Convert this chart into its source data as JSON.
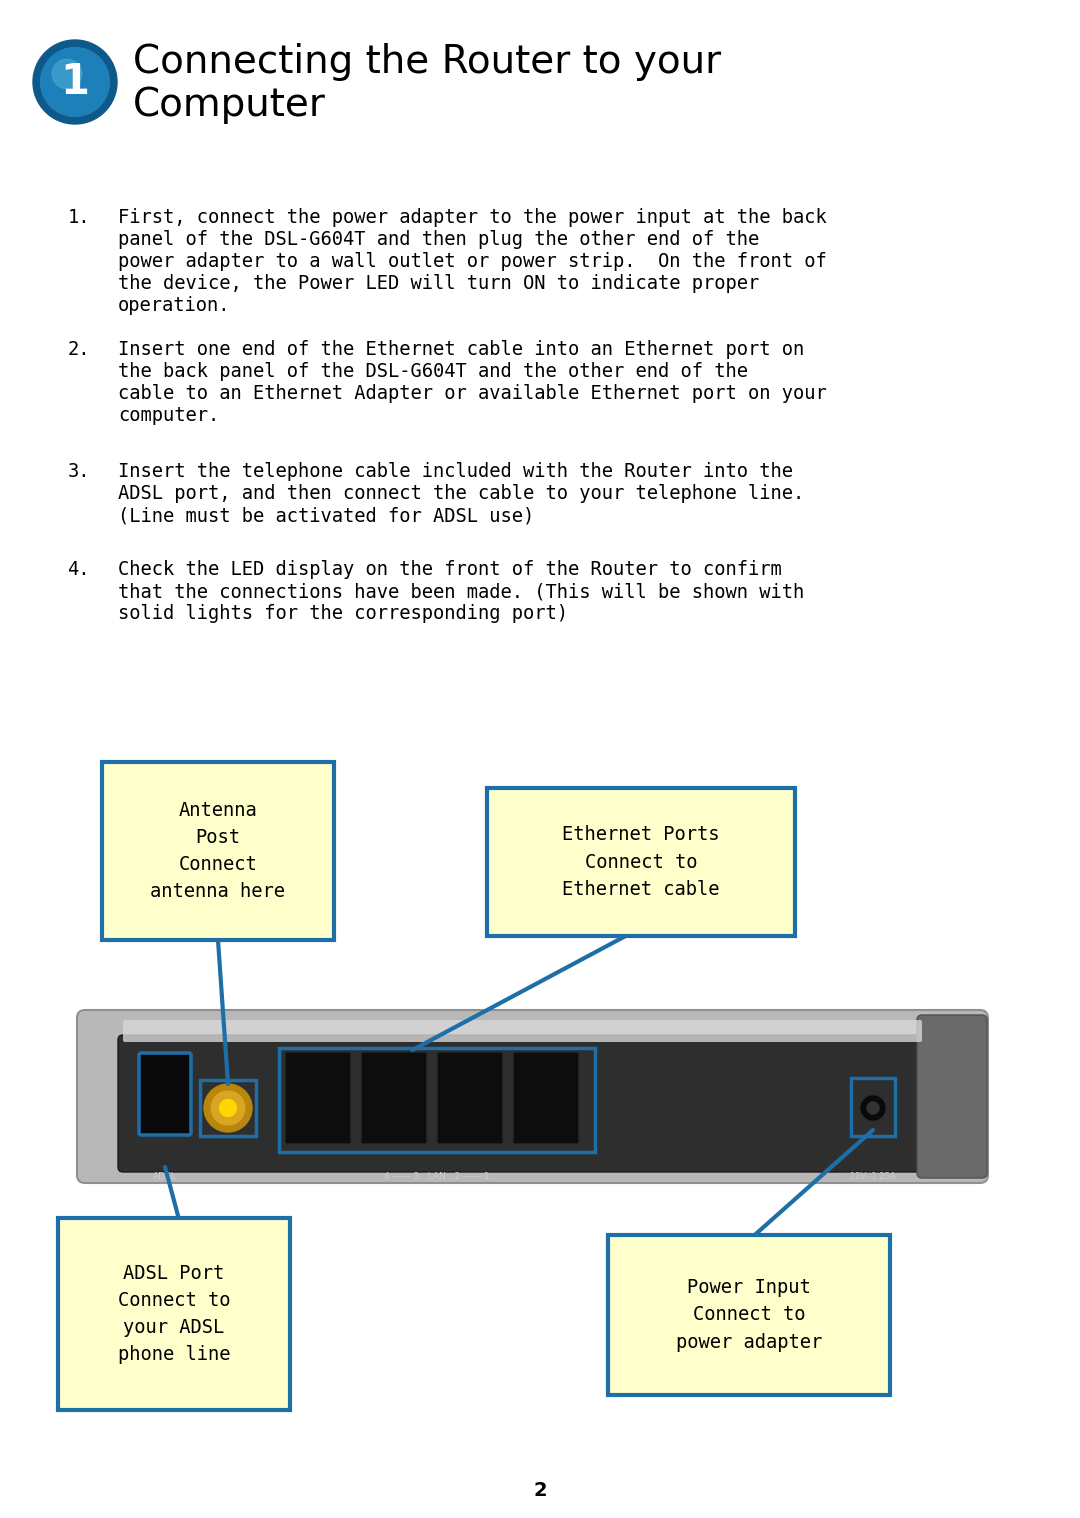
{
  "title_line1": "Connecting the Router to your",
  "title_line2": "Computer",
  "bg_color": "#ffffff",
  "title_color": "#000000",
  "title_fontsize": 28,
  "body_text_fontsize": 13.5,
  "items": [
    [
      "1.",
      "First, connect the power adapter to the power input at the back\n    panel of the DSL-G604T and then plug the other end of the\n    power adapter to a wall outlet or power strip.  On the front of\n    the device, the Power LED will turn ON to indicate proper\n    operation."
    ],
    [
      "2.",
      "Insert one end of the Ethernet cable into an Ethernet port on\n    the back panel of the DSL-G604T and the other end of the\n    cable to an Ethernet Adapter or available Ethernet port on your\n    computer."
    ],
    [
      "3.",
      "Insert the telephone cable included with the Router into the\n    ADSL port, and then connect the cable to your telephone line.\n    (Line must be activated for ADSL use)"
    ],
    [
      "4.",
      "Check the LED display on the front of the Router to confirm\n    that the connections have been made. (This will be shown with\n    solid lights for the corresponding port)"
    ]
  ],
  "label_bg": "#ffffcc",
  "label_border": "#1e6fa8",
  "label_fontsize": 13.5,
  "labels": {
    "antenna": "Antenna\nPost\nConnect\nantenna here",
    "ethernet": "Ethernet Ports\nConnect to\nEthernet cable",
    "adsl": "ADSL Port\nConnect to\nyour ADSL\nphone line",
    "power": "Power Input\nConnect to\npower adapter"
  },
  "line_color": "#1e6fa8",
  "page_number": "2",
  "circle_bg1": "#0d5a8a",
  "circle_bg2": "#1e80b8",
  "circle_highlight": "#4aabd4"
}
